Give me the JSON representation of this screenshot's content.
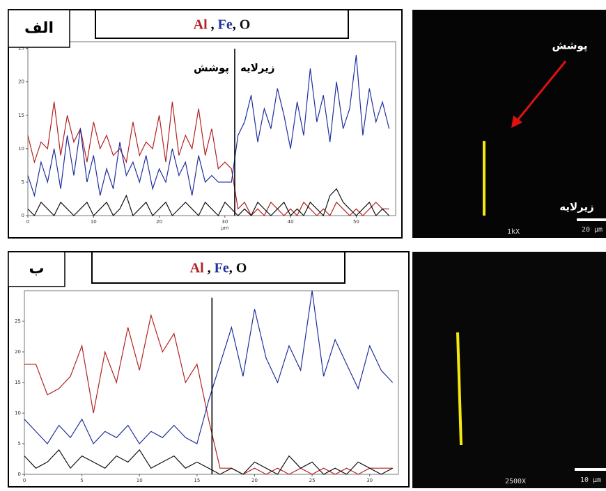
{
  "chart_data": [
    {
      "type": "line",
      "panel_label": "الف",
      "legend_separators": [
        " , ",
        ", "
      ],
      "xlabel": "µm",
      "annotations": [
        "پوشش",
        "زیرلایه"
      ],
      "boundary": 31.5,
      "x": [
        0,
        1,
        2,
        3,
        4,
        5,
        6,
        7,
        8,
        9,
        10,
        11,
        12,
        13,
        14,
        15,
        16,
        17,
        18,
        19,
        20,
        21,
        22,
        23,
        24,
        25,
        26,
        27,
        28,
        29,
        30,
        31,
        32,
        33,
        34,
        35,
        36,
        37,
        38,
        39,
        40,
        41,
        42,
        43,
        44,
        45,
        46,
        47,
        48,
        49,
        50,
        51,
        52,
        53,
        54,
        55
      ],
      "series": [
        {
          "name": "Al",
          "color": "#b22222",
          "values": [
            12,
            8,
            11,
            10,
            17,
            9,
            15,
            11,
            13,
            8,
            14,
            10,
            12,
            9,
            10,
            8,
            14,
            9,
            11,
            10,
            15,
            8,
            17,
            9,
            12,
            10,
            16,
            9,
            13,
            7,
            8,
            7,
            1,
            2,
            0,
            1,
            0,
            2,
            1,
            0,
            1,
            0,
            2,
            1,
            0,
            1,
            0,
            2,
            1,
            0,
            1,
            0,
            1,
            2,
            1,
            1
          ]
        },
        {
          "name": "Fe",
          "color": "#1f2f9e",
          "values": [
            6,
            3,
            8,
            5,
            10,
            4,
            12,
            6,
            13,
            5,
            9,
            3,
            7,
            4,
            11,
            6,
            8,
            5,
            9,
            4,
            7,
            5,
            10,
            6,
            8,
            3,
            9,
            5,
            6,
            5,
            5,
            5,
            12,
            14,
            18,
            11,
            16,
            13,
            19,
            15,
            10,
            17,
            12,
            22,
            14,
            18,
            11,
            20,
            13,
            16,
            24,
            12,
            19,
            14,
            17,
            13
          ]
        },
        {
          "name": "O",
          "color": "#111111",
          "values": [
            1,
            0,
            2,
            1,
            0,
            2,
            1,
            0,
            1,
            2,
            0,
            1,
            2,
            0,
            1,
            3,
            0,
            1,
            2,
            0,
            1,
            2,
            0,
            1,
            2,
            1,
            0,
            2,
            1,
            0,
            2,
            1,
            0,
            1,
            0,
            2,
            1,
            0,
            1,
            2,
            0,
            1,
            0,
            2,
            1,
            0,
            3,
            4,
            2,
            1,
            0,
            1,
            2,
            0,
            1,
            0
          ]
        }
      ],
      "xlim": [
        0,
        56
      ],
      "xticks": [
        0,
        10,
        20,
        30,
        40,
        50
      ],
      "ylim": [
        0,
        26
      ],
      "yticks": [
        0,
        5,
        10,
        15,
        20,
        25
      ]
    },
    {
      "type": "line",
      "panel_label": "ب",
      "legend_separators": [
        " , ",
        ", "
      ],
      "boundary": 16.3,
      "x": [
        0,
        1,
        2,
        3,
        4,
        5,
        6,
        7,
        8,
        9,
        10,
        11,
        12,
        13,
        14,
        15,
        16,
        17,
        18,
        19,
        20,
        21,
        22,
        23,
        24,
        25,
        26,
        27,
        28,
        29,
        30,
        31,
        32
      ],
      "series": [
        {
          "name": "Al",
          "color": "#b22222",
          "values": [
            18,
            18,
            13,
            14,
            16,
            21,
            10,
            20,
            15,
            24,
            17,
            26,
            20,
            23,
            15,
            18,
            9,
            1,
            1,
            0,
            1,
            0,
            1,
            0,
            1,
            0,
            1,
            0,
            1,
            0,
            1,
            1,
            1
          ]
        },
        {
          "name": "Fe",
          "color": "#1f2f9e",
          "values": [
            9,
            7,
            5,
            8,
            6,
            9,
            5,
            7,
            6,
            8,
            5,
            7,
            6,
            8,
            6,
            5,
            12,
            18,
            24,
            16,
            27,
            19,
            15,
            21,
            17,
            30,
            16,
            22,
            18,
            14,
            21,
            17,
            15
          ]
        },
        {
          "name": "O",
          "color": "#111111",
          "values": [
            3,
            1,
            2,
            4,
            1,
            3,
            2,
            1,
            3,
            2,
            4,
            1,
            2,
            3,
            1,
            2,
            1,
            0,
            1,
            0,
            2,
            1,
            0,
            3,
            1,
            2,
            0,
            1,
            0,
            2,
            1,
            0,
            1
          ]
        }
      ],
      "xlim": [
        0,
        32.5
      ],
      "xticks": [
        0,
        5,
        10,
        15,
        20,
        25,
        30
      ],
      "ylim": [
        0,
        30
      ],
      "yticks": [
        0,
        5,
        10,
        15,
        20,
        25
      ]
    }
  ],
  "images": [
    {
      "labels": [
        "پوشش",
        "زیرلایه"
      ],
      "magnification": "1kX",
      "scale": "20 µm"
    },
    {
      "magnification": "2500X",
      "scale": "10 µm"
    }
  ]
}
